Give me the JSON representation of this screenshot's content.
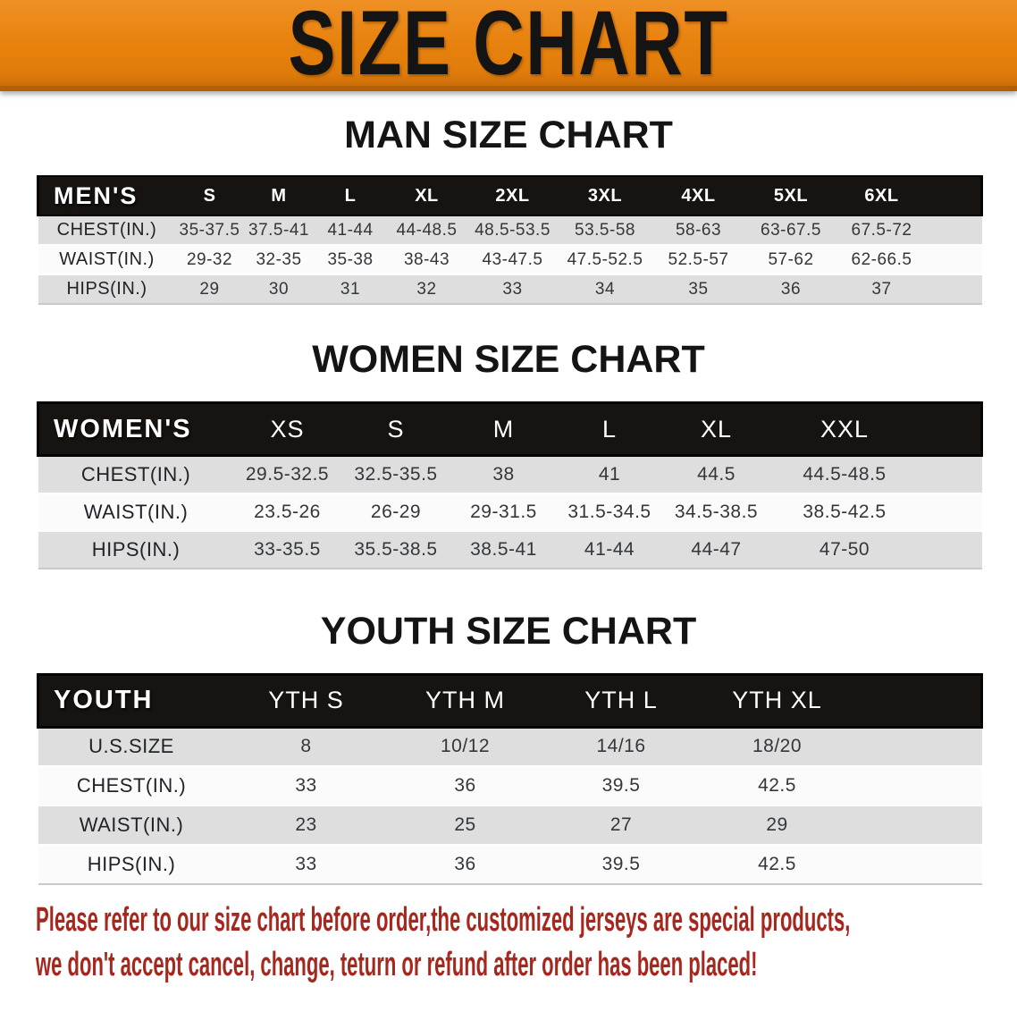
{
  "banner": {
    "title": "SIZE CHART"
  },
  "sections": {
    "men": {
      "heading": "MAN SIZE CHART",
      "table": {
        "group_label": "MEN'S",
        "columns": [
          "S",
          "M",
          "L",
          "XL",
          "2XL",
          "3XL",
          "4XL",
          "5XL",
          "6XL"
        ],
        "rows": [
          {
            "label": "CHEST(IN.)",
            "values": [
              "35-37.5",
              "37.5-41",
              "41-44",
              "44-48.5",
              "48.5-53.5",
              "53.5-58",
              "58-63",
              "63-67.5",
              "67.5-72"
            ]
          },
          {
            "label": "WAIST(IN.)",
            "values": [
              "29-32",
              "32-35",
              "35-38",
              "38-43",
              "43-47.5",
              "47.5-52.5",
              "52.5-57",
              "57-62",
              "62-66.5"
            ]
          },
          {
            "label": "HIPS(IN.)",
            "values": [
              "29",
              "30",
              "31",
              "32",
              "33",
              "34",
              "35",
              "36",
              "37"
            ]
          }
        ]
      }
    },
    "women": {
      "heading": "WOMEN SIZE CHART",
      "table": {
        "group_label": "WOMEN'S",
        "columns": [
          "XS",
          "S",
          "M",
          "L",
          "XL",
          "XXL"
        ],
        "rows": [
          {
            "label": "CHEST(IN.)",
            "values": [
              "29.5-32.5",
              "32.5-35.5",
              "38",
              "41",
              "44.5",
              "44.5-48.5"
            ]
          },
          {
            "label": "WAIST(IN.)",
            "values": [
              "23.5-26",
              "26-29",
              "29-31.5",
              "31.5-34.5",
              "34.5-38.5",
              "38.5-42.5"
            ]
          },
          {
            "label": "HIPS(IN.)",
            "values": [
              "33-35.5",
              "35.5-38.5",
              "38.5-41",
              "41-44",
              "44-47",
              "47-50"
            ]
          }
        ]
      }
    },
    "youth": {
      "heading": "YOUTH SIZE CHART",
      "table": {
        "group_label": "YOUTH",
        "columns": [
          "YTH S",
          "YTH M",
          "YTH L",
          "YTH XL"
        ],
        "rows": [
          {
            "label": "U.S.SIZE",
            "values": [
              "8",
              "10/12",
              "14/16",
              "18/20"
            ]
          },
          {
            "label": "CHEST(IN.)",
            "values": [
              "33",
              "36",
              "39.5",
              "42.5"
            ]
          },
          {
            "label": "WAIST(IN.)",
            "values": [
              "23",
              "25",
              "27",
              "29"
            ]
          },
          {
            "label": "HIPS(IN.)",
            "values": [
              "33",
              "36",
              "39.5",
              "42.5"
            ]
          }
        ]
      }
    }
  },
  "disclaimer": {
    "line1": "Please refer to our size chart before order,the customized jerseys are special products,",
    "line2": "we don't accept cancel, change, teturn or refund after order has been placed!"
  },
  "colors": {
    "banner_orange": "#e8820e",
    "banner_trim": "#b35f07",
    "header_bar_black": "#161311",
    "row_stripe_gray": "#dedede",
    "row_stripe_white": "#fbfbfb",
    "heading_black": "#141414",
    "disclaimer_red": "#a5271e"
  }
}
